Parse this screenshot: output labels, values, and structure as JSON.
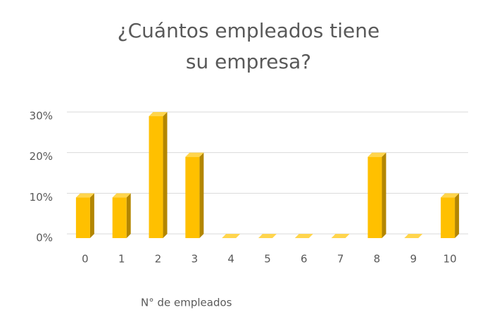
{
  "chart_data": {
    "type": "bar3d",
    "title": "¿Cuántos empleados tiene su empresa?",
    "x_label": "N° de empleados",
    "categories": [
      "0",
      "1",
      "2",
      "3",
      "4",
      "5",
      "6",
      "7",
      "8",
      "9",
      "10"
    ],
    "values": [
      10,
      10,
      30,
      20,
      0,
      0,
      0,
      0,
      20,
      0,
      10
    ],
    "color": "#ffc000",
    "ylim": [
      0,
      30
    ],
    "yticks": [
      {
        "value": 0,
        "label": "0%"
      },
      {
        "value": 10,
        "label": "10%"
      },
      {
        "value": 20,
        "label": "20%"
      },
      {
        "value": 30,
        "label": "30%"
      }
    ],
    "grid": true
  }
}
